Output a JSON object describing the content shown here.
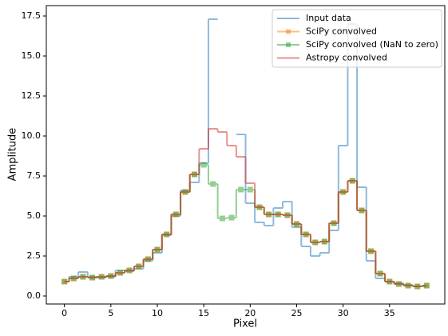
{
  "chart_data": {
    "type": "step",
    "xlabel": "Pixel",
    "ylabel": "Amplitude",
    "x": [
      0,
      1,
      2,
      3,
      4,
      5,
      6,
      7,
      8,
      9,
      10,
      11,
      12,
      13,
      14,
      15,
      16,
      17,
      18,
      19,
      20,
      21,
      22,
      23,
      24,
      25,
      26,
      27,
      28,
      29,
      30,
      31,
      32,
      33,
      34,
      35,
      36,
      37,
      38,
      39
    ],
    "series": [
      {
        "name": "Input data",
        "color": "#1f77b4",
        "marker": null,
        "values": [
          0.9,
          1.2,
          1.5,
          1.2,
          1.15,
          1.2,
          1.6,
          1.55,
          1.7,
          2.2,
          2.7,
          3.8,
          5.0,
          6.6,
          7.1,
          8.3,
          17.3,
          null,
          null,
          10.1,
          5.8,
          4.6,
          4.4,
          5.5,
          5.9,
          4.3,
          3.1,
          2.5,
          2.7,
          4.1,
          9.4,
          17.0,
          6.8,
          2.2,
          1.1,
          0.9,
          0.8,
          0.7,
          0.6,
          0.6
        ]
      },
      {
        "name": "SciPy convolved",
        "color": "#ff7f0e",
        "marker": "s",
        "values": [
          0.9,
          1.1,
          1.2,
          1.15,
          1.2,
          1.25,
          1.45,
          1.6,
          1.85,
          2.3,
          2.9,
          3.85,
          5.1,
          6.5,
          7.6,
          null,
          null,
          null,
          null,
          null,
          null,
          5.55,
          5.1,
          5.1,
          5.05,
          4.5,
          3.85,
          3.35,
          3.4,
          4.55,
          6.5,
          7.2,
          5.35,
          2.8,
          1.4,
          0.9,
          0.75,
          0.65,
          0.6,
          0.65
        ]
      },
      {
        "name": "SciPy convolved (NaN to zero)",
        "color": "#2ca02c",
        "marker": "s",
        "values": [
          0.9,
          1.1,
          1.2,
          1.15,
          1.2,
          1.25,
          1.45,
          1.6,
          1.85,
          2.3,
          2.9,
          3.85,
          5.1,
          6.5,
          7.6,
          8.2,
          7.0,
          4.85,
          4.9,
          6.65,
          6.65,
          5.55,
          5.1,
          5.1,
          5.05,
          4.5,
          3.85,
          3.35,
          3.4,
          4.55,
          6.5,
          7.2,
          5.35,
          2.8,
          1.4,
          0.9,
          0.75,
          0.65,
          0.6,
          0.65
        ]
      },
      {
        "name": "Astropy convolved",
        "color": "#d62728",
        "marker": null,
        "values": [
          0.9,
          1.1,
          1.2,
          1.15,
          1.2,
          1.25,
          1.45,
          1.6,
          1.85,
          2.3,
          2.9,
          3.85,
          5.1,
          6.5,
          7.6,
          9.2,
          10.45,
          10.25,
          9.4,
          8.7,
          7.05,
          5.55,
          5.1,
          5.1,
          5.05,
          4.5,
          3.85,
          3.35,
          3.4,
          4.55,
          6.5,
          7.2,
          5.35,
          2.8,
          1.4,
          0.9,
          0.75,
          0.65,
          0.6,
          0.65
        ]
      }
    ],
    "xlim": [
      -1.95,
      40.95
    ],
    "xticks": [
      0,
      5,
      10,
      15,
      20,
      25,
      30,
      35
    ],
    "ylim": [
      -0.5,
      18.15
    ],
    "yticks": [
      {
        "value": 0,
        "label": "0.0"
      },
      {
        "value": 2.5,
        "label": "2.5"
      },
      {
        "value": 5,
        "label": "5.0"
      },
      {
        "value": 7.5,
        "label": "7.5"
      },
      {
        "value": 10,
        "label": "10.0"
      },
      {
        "value": 12.5,
        "label": "12.5"
      },
      {
        "value": 15,
        "label": "15.0"
      },
      {
        "value": 17.5,
        "label": "17.5"
      }
    ],
    "legend": "upper right",
    "alpha": 0.5
  }
}
